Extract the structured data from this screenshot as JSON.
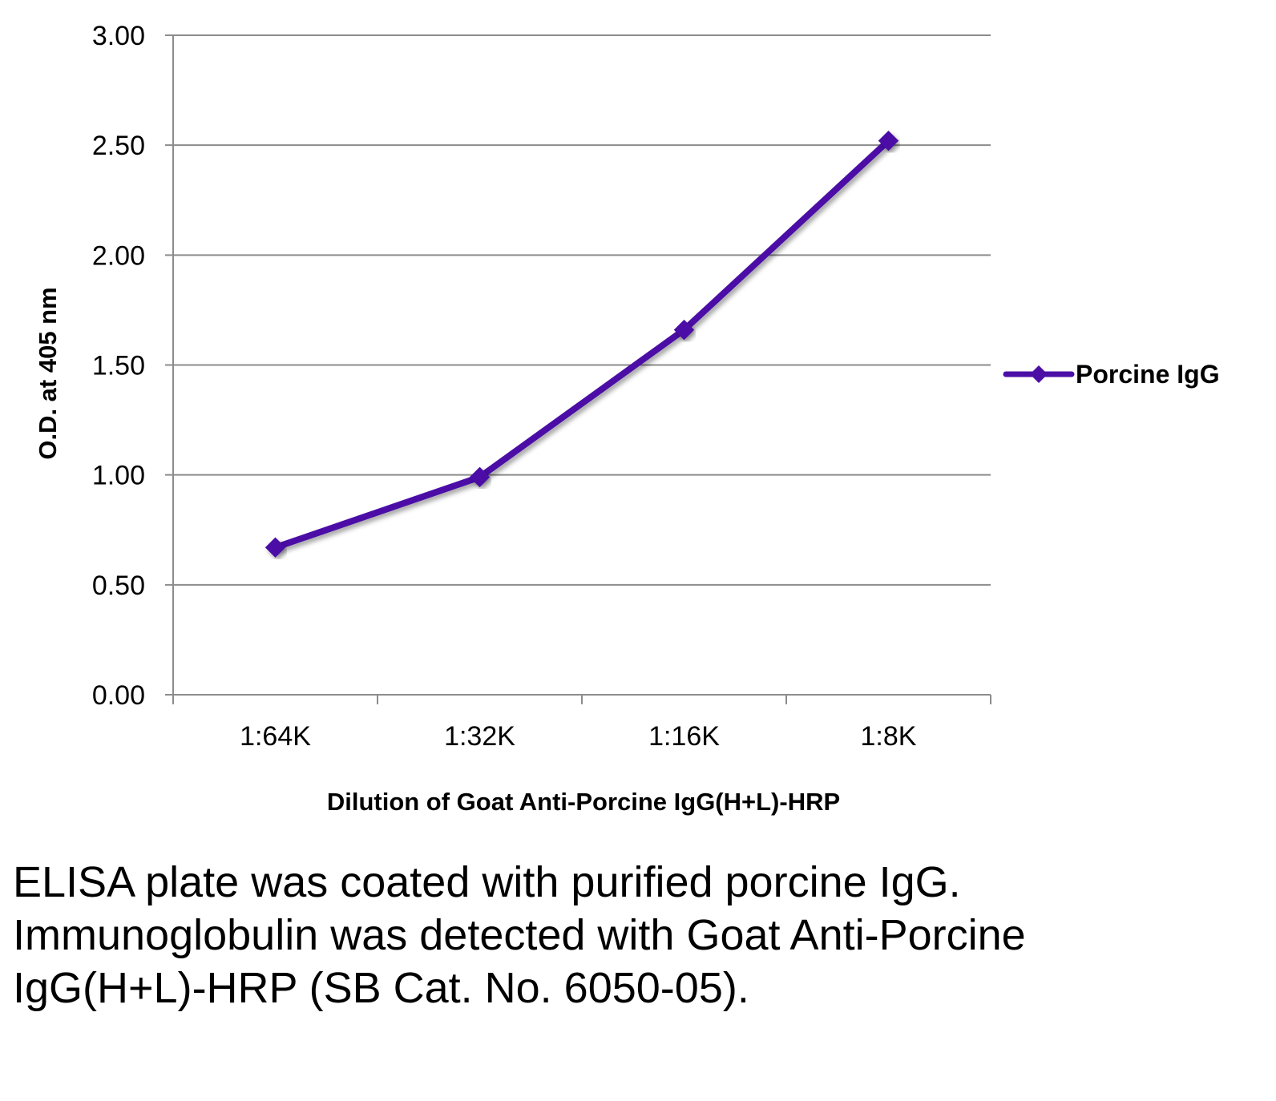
{
  "chart_data": {
    "type": "line",
    "categories": [
      "1:64K",
      "1:32K",
      "1:16K",
      "1:8K"
    ],
    "series": [
      {
        "name": "Porcine IgG",
        "values": [
          0.67,
          0.99,
          1.66,
          2.52
        ],
        "color": "#4b0fa6"
      }
    ],
    "xlabel": "Dilution of Goat Anti-Porcine IgG(H+L)-HRP",
    "ylabel": "O.D. at 405 nm",
    "ylim": [
      0,
      3
    ],
    "yticks": [
      "0.00",
      "0.50",
      "1.00",
      "1.50",
      "2.00",
      "2.50",
      "3.00"
    ],
    "grid": true,
    "legend": "right",
    "marker": "diamond"
  },
  "caption": "ELISA plate was coated with purified porcine IgG.  Immunoglobulin was detected with Goat Anti-Porcine IgG(H+L)-HRP (SB Cat. No. 6050-05)."
}
